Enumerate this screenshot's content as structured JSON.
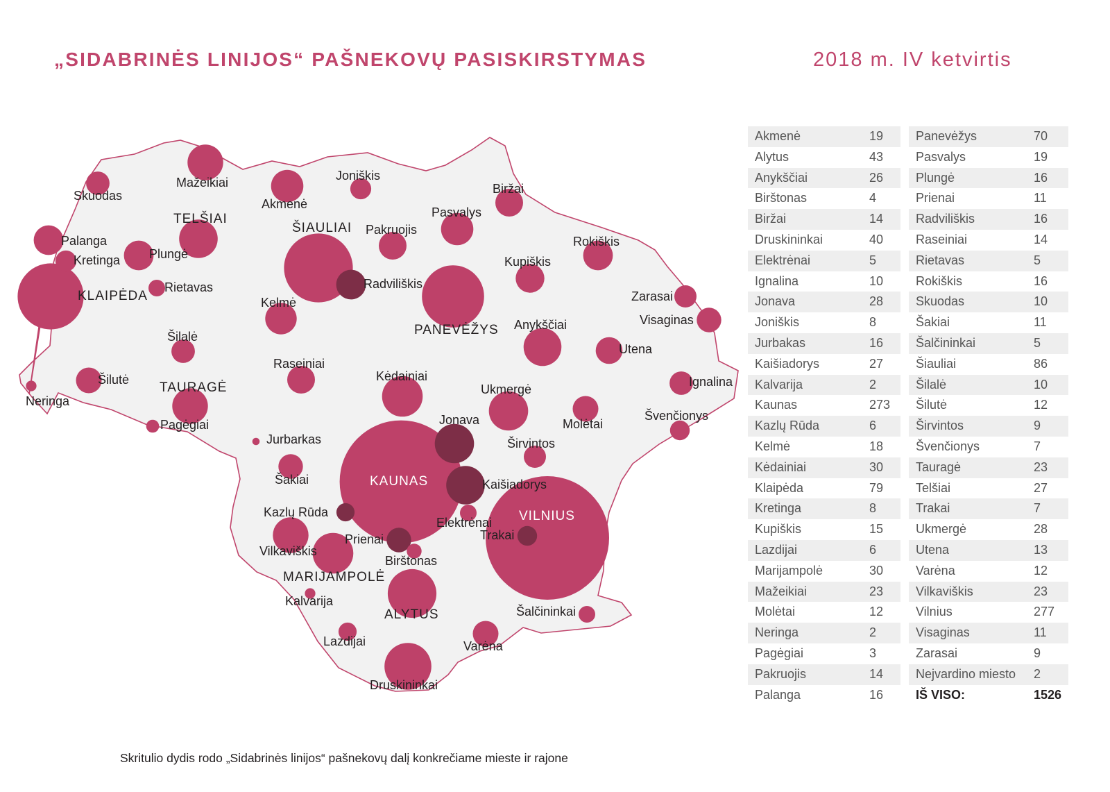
{
  "title": "„SIDABRINĖS LINIJOS“ PAŠNEKOVŲ PASISKIRSTYMAS",
  "period": "2018 m. IV ketvirtis",
  "footnote": "Skritulio dydis rodo „Sidabrinės linijos“ pašnekovų dalį konkrečiame mieste ir rajone",
  "colors": {
    "accent": "#c0456c",
    "circle": "#be4169",
    "circle_dark": "#7d2e47",
    "map_fill": "#f2f2f2",
    "map_border": "#c0456c",
    "row_shade": "#eeeeee"
  },
  "table_left": [
    {
      "name": "Akmenė",
      "value": "19"
    },
    {
      "name": "Alytus",
      "value": "43"
    },
    {
      "name": "Anykščiai",
      "value": "26"
    },
    {
      "name": "Birštonas",
      "value": "4"
    },
    {
      "name": "Biržai",
      "value": "14"
    },
    {
      "name": "Druskininkai",
      "value": "40"
    },
    {
      "name": "Elektrėnai",
      "value": "5"
    },
    {
      "name": "Ignalina",
      "value": "10"
    },
    {
      "name": "Jonava",
      "value": "28"
    },
    {
      "name": "Joniškis",
      "value": "8"
    },
    {
      "name": "Jurbakas",
      "value": "16"
    },
    {
      "name": "Kaišiadorys",
      "value": "27"
    },
    {
      "name": "Kalvarija",
      "value": "2"
    },
    {
      "name": "Kaunas",
      "value": "273"
    },
    {
      "name": "Kazlų Rūda",
      "value": "6"
    },
    {
      "name": "Kelmė",
      "value": "18"
    },
    {
      "name": "Kėdainiai",
      "value": "30"
    },
    {
      "name": "Klaipėda",
      "value": "79"
    },
    {
      "name": "Kretinga",
      "value": "8"
    },
    {
      "name": "Kupiškis",
      "value": "15"
    },
    {
      "name": "Lazdijai",
      "value": "6"
    },
    {
      "name": "Marijampolė",
      "value": "30"
    },
    {
      "name": "Mažeikiai",
      "value": "23"
    },
    {
      "name": "Molėtai",
      "value": "12"
    },
    {
      "name": "Neringa",
      "value": "2"
    },
    {
      "name": "Pagėgiai",
      "value": "3"
    },
    {
      "name": "Pakruojis",
      "value": "14"
    },
    {
      "name": "Palanga",
      "value": "16"
    }
  ],
  "table_right": [
    {
      "name": "Panevėžys",
      "value": "70"
    },
    {
      "name": "Pasvalys",
      "value": "19"
    },
    {
      "name": "Plungė",
      "value": "16"
    },
    {
      "name": "Prienai",
      "value": "11"
    },
    {
      "name": "Radviliškis",
      "value": "16"
    },
    {
      "name": "Raseiniai",
      "value": "14"
    },
    {
      "name": "Rietavas",
      "value": "5"
    },
    {
      "name": "Rokiškis",
      "value": "16"
    },
    {
      "name": "Skuodas",
      "value": "10"
    },
    {
      "name": "Šakiai",
      "value": "11"
    },
    {
      "name": "Šalčininkai",
      "value": "5"
    },
    {
      "name": "Šiauliai",
      "value": "86"
    },
    {
      "name": "Šilalė",
      "value": "10"
    },
    {
      "name": "Šilutė",
      "value": "12"
    },
    {
      "name": "Širvintos",
      "value": "9"
    },
    {
      "name": "Švenčionys",
      "value": "7"
    },
    {
      "name": "Tauragė",
      "value": "23"
    },
    {
      "name": "Telšiai",
      "value": "27"
    },
    {
      "name": "Trakai",
      "value": "7"
    },
    {
      "name": "Ukmergė",
      "value": "28"
    },
    {
      "name": "Utena",
      "value": "13"
    },
    {
      "name": "Varėna",
      "value": "12"
    },
    {
      "name": "Vilkaviškis",
      "value": "23"
    },
    {
      "name": "Vilnius",
      "value": "277"
    },
    {
      "name": "Visaginas",
      "value": "11"
    },
    {
      "name": "Zarasai",
      "value": "9"
    },
    {
      "name": "Nejvardino miesto",
      "value": "2"
    },
    {
      "name": "IŠ VISO:",
      "value": "1526"
    }
  ],
  "map_labels": {
    "mazeikiai": "Mažeikiai",
    "skuodas": "Skuodas",
    "akmene": "Akmenė",
    "joniskis": "Joniškis",
    "birzai": "Biržai",
    "pasvalys": "Pasvalys",
    "telsiai": "TELŠIAI",
    "siauliai": "ŠIAULIAI",
    "pakruojis": "Pakruojis",
    "palanga": "Palanga",
    "kretinga": "Kretinga",
    "plunge": "Plungė",
    "rokiskis": "Rokiškis",
    "kupiskis": "Kupiškis",
    "radviliskis": "Radviliškis",
    "klaipeda": "KLAIPĖDA",
    "rietavas": "Rietavas",
    "zarasai": "Zarasai",
    "kelme": "Kelmė",
    "visaginas": "Visaginas",
    "panevezys": "PANEVĖŽYS",
    "anyksciai": "Anykščiai",
    "silale": "Šilalė",
    "utena": "Utena",
    "raseiniai": "Raseiniai",
    "kedainiai": "Kėdainiai",
    "silute": "Šilutė",
    "taurage": "TAURAGĖ",
    "ignalina": "Ignalina",
    "ukmerge": "Ukmergė",
    "neringa": "Neringa",
    "pagegiai": "Pagėgiai",
    "jonava": "Jonava",
    "moletai": "Molėtai",
    "svencionys": "Švenčionys",
    "jurbarkas": "Jurbarkas",
    "sirvintos": "Širvintos",
    "sakiai": "Šakiai",
    "kaunas": "KAUNAS",
    "kaisiadorys": "Kaišiadorys",
    "vilnius": "VILNIUS",
    "kazlu_ruda": "Kazlų Rūda",
    "elektrenai": "Elektrėnai",
    "trakai": "Trakai",
    "vilkaviskis": "Vilkaviškis",
    "prienai": "Prienai",
    "birstonas": "Birštonas",
    "marijampole": "MARIJAMPOLĖ",
    "kalvarija": "Kalvarija",
    "alytus": "ALYTUS",
    "salcininkai": "Šalčininkai",
    "lazdijai": "Lazdijai",
    "varena": "Varėna",
    "druskininkai": "Druskininkai"
  }
}
